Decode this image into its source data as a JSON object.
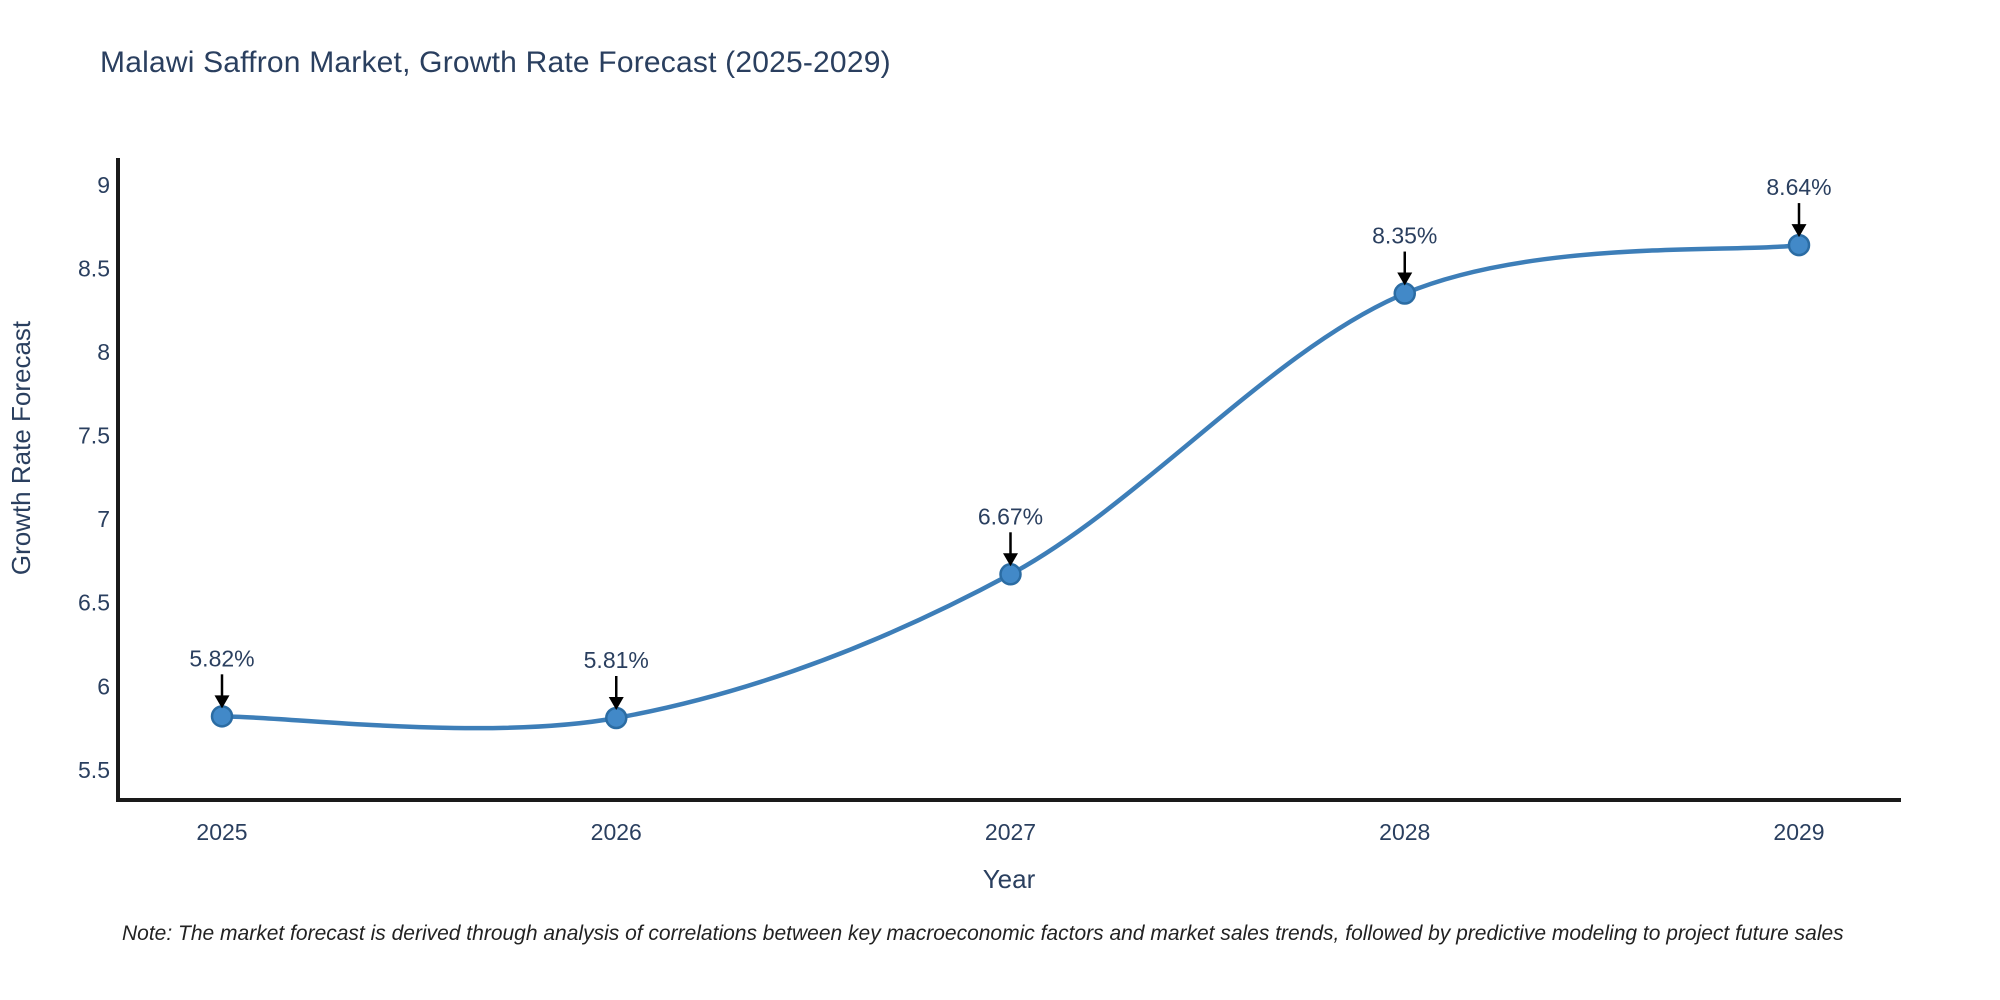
{
  "title": "Malawi Saffron Market, Growth Rate Forecast (2025-2029)",
  "note": "Note: The market forecast is derived through analysis of correlations between key macroeconomic factors and market sales trends, followed by predictive modeling to project future sales",
  "colors": {
    "line": "#3d7eb8",
    "marker_fill": "#4289c8",
    "marker_edge": "#2b6ca3",
    "axis_line": "#1a1a1a",
    "text": "#2a3f5f",
    "arrow": "#000000",
    "background": "#ffffff"
  },
  "chart_data": {
    "type": "line",
    "title": "Malawi Saffron Market, Growth Rate Forecast (2025-2029)",
    "x": [
      2025,
      2026,
      2027,
      2028,
      2029
    ],
    "values": [
      5.82,
      5.81,
      6.67,
      8.35,
      8.64
    ],
    "point_labels": [
      "5.82%",
      "5.81%",
      "6.67%",
      "8.35%",
      "8.64%"
    ],
    "xlabel": "Year",
    "ylabel": "Growth Rate Forecast",
    "xticks": [
      2025,
      2026,
      2027,
      2028,
      2029
    ],
    "yticks": [
      5.5,
      6,
      6.5,
      7,
      7.5,
      8,
      8.5,
      9
    ],
    "xlim": [
      2024.73,
      2029.26
    ],
    "ylim": [
      5.32,
      9.16
    ],
    "line_shape": "spline",
    "grid": false,
    "legend": "none"
  }
}
